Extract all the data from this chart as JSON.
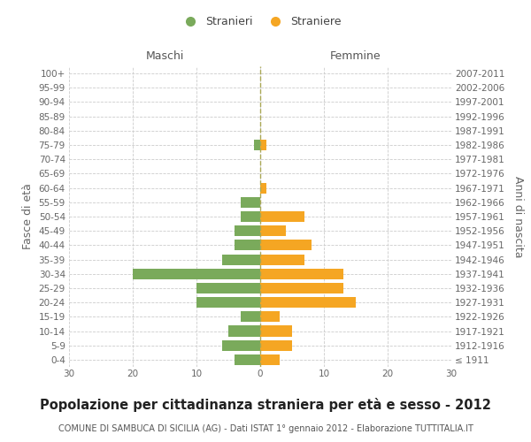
{
  "age_groups": [
    "100+",
    "95-99",
    "90-94",
    "85-89",
    "80-84",
    "75-79",
    "70-74",
    "65-69",
    "60-64",
    "55-59",
    "50-54",
    "45-49",
    "40-44",
    "35-39",
    "30-34",
    "25-29",
    "20-24",
    "15-19",
    "10-14",
    "5-9",
    "0-4"
  ],
  "birth_years": [
    "≤ 1911",
    "1912-1916",
    "1917-1921",
    "1922-1926",
    "1927-1931",
    "1932-1936",
    "1937-1941",
    "1942-1946",
    "1947-1951",
    "1952-1956",
    "1957-1961",
    "1962-1966",
    "1967-1971",
    "1972-1976",
    "1977-1981",
    "1982-1986",
    "1987-1991",
    "1992-1996",
    "1997-2001",
    "2002-2006",
    "2007-2011"
  ],
  "males": [
    0,
    0,
    0,
    0,
    0,
    1,
    0,
    0,
    0,
    3,
    3,
    4,
    4,
    6,
    20,
    10,
    10,
    3,
    5,
    6,
    4
  ],
  "females": [
    0,
    0,
    0,
    0,
    0,
    1,
    0,
    0,
    1,
    0,
    7,
    4,
    8,
    7,
    13,
    13,
    15,
    3,
    5,
    5,
    3
  ],
  "male_color": "#7aaa5b",
  "female_color": "#f5a623",
  "title": "Popolazione per cittadinanza straniera per età e sesso - 2012",
  "subtitle": "COMUNE DI SAMBUCA DI SICILIA (AG) - Dati ISTAT 1° gennaio 2012 - Elaborazione TUTTITALIA.IT",
  "xlabel_left": "Maschi",
  "xlabel_right": "Femmine",
  "ylabel_left": "Fasce di età",
  "ylabel_right": "Anni di nascita",
  "legend_male": "Stranieri",
  "legend_female": "Straniere",
  "xlim": 30,
  "background_color": "#ffffff",
  "grid_color": "#cccccc",
  "center_line_color": "#aaa855",
  "title_fontsize": 10.5,
  "subtitle_fontsize": 7,
  "label_fontsize": 9,
  "tick_fontsize": 7.5
}
